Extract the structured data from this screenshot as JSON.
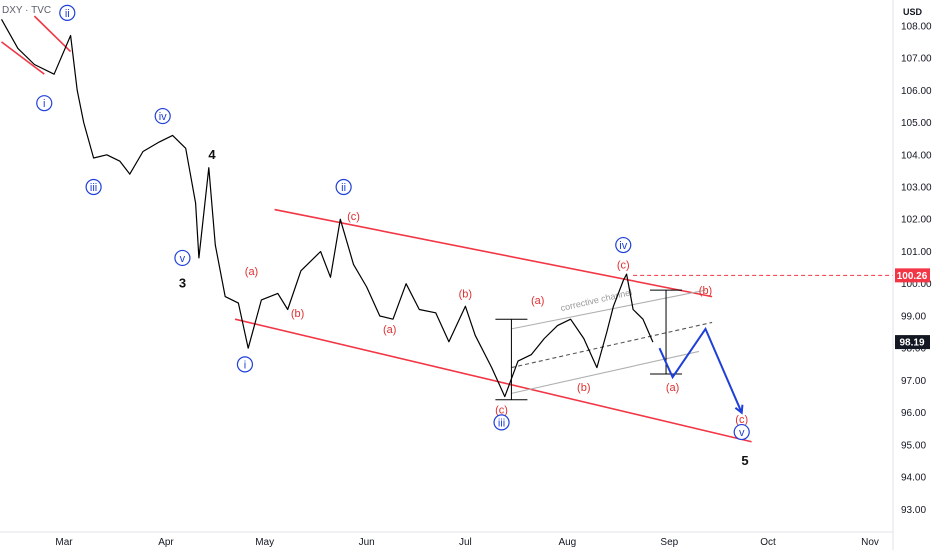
{
  "symbol": "DXY · TVC",
  "currency": "USD",
  "chart_data": {
    "type": "line",
    "title": "",
    "y_ticks": [
      93.0,
      94.0,
      95.0,
      96.0,
      97.0,
      98.0,
      99.0,
      100.0,
      101.0,
      102.0,
      103.0,
      104.0,
      105.0,
      106.0,
      107.0,
      108.0
    ],
    "y_range": [
      92.3,
      108.8
    ],
    "x_ticks": [
      "Mar",
      "Apr",
      "May",
      "Jun",
      "Jul",
      "Aug",
      "Sep",
      "Oct",
      "Nov"
    ],
    "price_labels": [
      {
        "text": "100.26",
        "value": 100.26,
        "color": "#f23645"
      },
      {
        "text": "98.19",
        "value": 98.19,
        "color": "#131722"
      }
    ],
    "series": [
      {
        "name": "",
        "color": "#000000",
        "points": [
          [
            "Feb 10",
            108.2
          ],
          [
            "Feb 15",
            107.3
          ],
          [
            "Feb 20",
            106.8
          ],
          [
            "Feb 26",
            106.5
          ],
          [
            "Mar 3",
            107.7
          ],
          [
            "Mar 5",
            106.0
          ],
          [
            "Mar 7",
            105.0
          ],
          [
            "Mar 10",
            103.9
          ],
          [
            "Mar 14",
            104.0
          ],
          [
            "Mar 18",
            103.8
          ],
          [
            "Mar 21",
            103.4
          ],
          [
            "Mar 25",
            104.1
          ],
          [
            "Mar 30",
            104.4
          ],
          [
            "Apr 3",
            104.6
          ],
          [
            "Apr 7",
            104.2
          ],
          [
            "Apr 10",
            102.5
          ],
          [
            "Apr 11",
            100.8
          ],
          [
            "Apr 14",
            103.6
          ],
          [
            "Apr 16",
            101.2
          ],
          [
            "Apr 19",
            99.6
          ],
          [
            "Apr 23",
            99.4
          ],
          [
            "Apr 26",
            98.0
          ],
          [
            "Apr 30",
            99.5
          ],
          [
            "May 5",
            99.7
          ],
          [
            "May 8",
            99.2
          ],
          [
            "May 12",
            100.4
          ],
          [
            "May 18",
            101.0
          ],
          [
            "May 21",
            100.2
          ],
          [
            "May 24",
            102.0
          ],
          [
            "May 28",
            100.6
          ],
          [
            "Jun 1",
            99.9
          ],
          [
            "Jun 5",
            99.0
          ],
          [
            "Jun 9",
            98.9
          ],
          [
            "Jun 13",
            100.0
          ],
          [
            "Jun 17",
            99.2
          ],
          [
            "Jun 22",
            99.1
          ],
          [
            "Jun 26",
            98.2
          ],
          [
            "Jul 1",
            99.3
          ],
          [
            "Jul 4",
            98.4
          ],
          [
            "Jul 9",
            97.4
          ],
          [
            "Jul 13",
            96.5
          ],
          [
            "Jul 17",
            97.6
          ],
          [
            "Jul 21",
            97.8
          ],
          [
            "Jul 25",
            98.3
          ],
          [
            "Jul 29",
            98.7
          ],
          [
            "Aug 2",
            98.9
          ],
          [
            "Aug 6",
            98.3
          ],
          [
            "Aug 10",
            97.4
          ],
          [
            "Aug 13",
            98.5
          ],
          [
            "Aug 15",
            99.3
          ],
          [
            "Aug 18",
            100.1
          ],
          [
            "Aug 19",
            100.3
          ],
          [
            "Aug 21",
            99.2
          ],
          [
            "Aug 24",
            98.9
          ],
          [
            "Aug 27",
            98.19
          ]
        ]
      }
    ],
    "projection": {
      "color": "#1e3fd8",
      "points": [
        [
          "Aug 29",
          98.0
        ],
        [
          "Sep 2",
          97.1
        ],
        [
          "Sep 12",
          98.6
        ],
        [
          "Sep 23",
          96.0
        ]
      ]
    },
    "trendlines": [
      {
        "color": "#f23645",
        "from": [
          "Feb 10",
          107.5
        ],
        "to": [
          "Feb 23",
          106.5
        ]
      },
      {
        "color": "#f23645",
        "from": [
          "Feb 20",
          108.3
        ],
        "to": [
          "Mar 3",
          107.2
        ]
      },
      {
        "color": "#f23645",
        "from": [
          "May 4",
          102.3
        ],
        "to": [
          "Sep 14",
          99.6
        ]
      },
      {
        "color": "#f23645",
        "from": [
          "Apr 22",
          98.9
        ],
        "to": [
          "Sep 26",
          95.1
        ]
      },
      {
        "color": "#b0b0b0",
        "from": [
          "Jul 15",
          96.6
        ],
        "to": [
          "Sep 10",
          97.9
        ]
      },
      {
        "color": "#b0b0b0",
        "from": [
          "Jul 15",
          98.6
        ],
        "to": [
          "Sep 12",
          99.8
        ]
      },
      {
        "color": "#555555",
        "dashed": true,
        "from": [
          "Jul 15",
          97.4
        ],
        "to": [
          "Sep 14",
          98.8
        ]
      }
    ],
    "hline": {
      "value": 100.26,
      "from": "Aug 21",
      "color": "#f23645"
    },
    "brackets": [
      {
        "x": "Jul 15",
        "from": 96.4,
        "to": 98.9
      },
      {
        "x": "Aug 31",
        "from": 97.2,
        "to": 99.8
      }
    ],
    "channel_label": {
      "text": "corrective channel",
      "at": [
        "Aug 10",
        99.4
      ]
    },
    "wave_labels": [
      {
        "text": "i",
        "at": [
          "Feb 23",
          105.6
        ],
        "color": "#1e3fd8",
        "circled": true
      },
      {
        "text": "ii",
        "at": [
          "Mar 2",
          108.4
        ],
        "color": "#1e3fd8",
        "circled": true
      },
      {
        "text": "iii",
        "at": [
          "Mar 10",
          103.0
        ],
        "color": "#1e3fd8",
        "circled": true
      },
      {
        "text": "iv",
        "at": [
          "Mar 31",
          105.2
        ],
        "color": "#1e3fd8",
        "circled": true
      },
      {
        "text": "v",
        "at": [
          "Apr 6",
          100.8
        ],
        "color": "#1e3fd8",
        "circled": true
      },
      {
        "text": "3",
        "at": [
          "Apr 6",
          100.0
        ],
        "color": "#111111",
        "bold": true
      },
      {
        "text": "4",
        "at": [
          "Apr 15",
          104.0
        ],
        "color": "#111111",
        "bold": true
      },
      {
        "text": "i",
        "at": [
          "Apr 25",
          97.5
        ],
        "color": "#1e3fd8",
        "circled": true
      },
      {
        "text": "(a)",
        "at": [
          "Apr 27",
          100.4
        ],
        "color": "#e03030"
      },
      {
        "text": "(b)",
        "at": [
          "May 11",
          99.1
        ],
        "color": "#e03030"
      },
      {
        "text": "ii",
        "at": [
          "May 25",
          103.0
        ],
        "color": "#1e3fd8",
        "circled": true
      },
      {
        "text": "(c)",
        "at": [
          "May 28",
          102.1
        ],
        "color": "#e03030"
      },
      {
        "text": "(a)",
        "at": [
          "Jun 8",
          98.6
        ],
        "color": "#e03030"
      },
      {
        "text": "(b)",
        "at": [
          "Jul 1",
          99.7
        ],
        "color": "#e03030"
      },
      {
        "text": "(c)",
        "at": [
          "Jul 12",
          96.1
        ],
        "color": "#e03030"
      },
      {
        "text": "iii",
        "at": [
          "Jul 12",
          95.7
        ],
        "color": "#1e3fd8",
        "circled": true
      },
      {
        "text": "(a)",
        "at": [
          "Jul 23",
          99.5
        ],
        "color": "#e03030"
      },
      {
        "text": "(b)",
        "at": [
          "Aug 6",
          96.8
        ],
        "color": "#e03030"
      },
      {
        "text": "iv",
        "at": [
          "Aug 18",
          101.2
        ],
        "color": "#1e3fd8",
        "circled": true
      },
      {
        "text": "(c)",
        "at": [
          "Aug 18",
          100.6
        ],
        "color": "#e03030"
      },
      {
        "text": "(a)",
        "at": [
          "Sep 2",
          96.8
        ],
        "color": "#e03030"
      },
      {
        "text": "(b)",
        "at": [
          "Sep 12",
          99.8
        ],
        "color": "#e03030"
      },
      {
        "text": "(c)",
        "at": [
          "Sep 23",
          95.8
        ],
        "color": "#e03030"
      },
      {
        "text": "v",
        "at": [
          "Sep 23",
          95.4
        ],
        "color": "#1e3fd8",
        "circled": true
      },
      {
        "text": "5",
        "at": [
          "Sep 24",
          94.5
        ],
        "color": "#111111",
        "bold": true
      }
    ]
  }
}
